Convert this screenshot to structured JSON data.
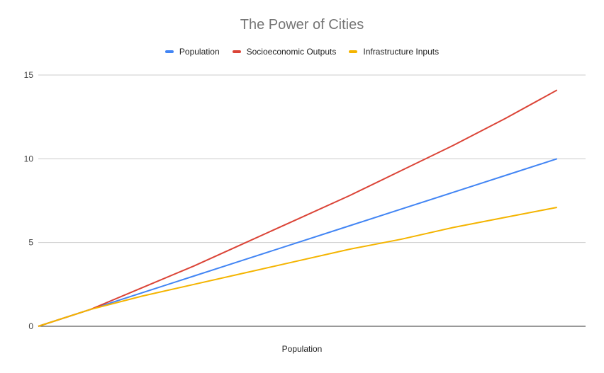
{
  "chart_data": {
    "type": "line",
    "title": "The Power of Cities",
    "xlabel": "Population",
    "ylabel": "",
    "x": [
      0,
      1,
      2,
      3,
      4,
      5,
      6,
      7,
      8,
      9,
      10
    ],
    "xlim": [
      0,
      10.55
    ],
    "ylim": [
      0,
      15
    ],
    "yticks": [
      0,
      5,
      10,
      15
    ],
    "grid": true,
    "legend_position": "top",
    "series": [
      {
        "name": "Population",
        "color": "#4285f4",
        "values": [
          0,
          1,
          2,
          3,
          4,
          5,
          6,
          7,
          8,
          9,
          10
        ]
      },
      {
        "name": "Socioeconomic Outputs",
        "color": "#db4437",
        "values": [
          0,
          1,
          2.3,
          3.6,
          5.0,
          6.4,
          7.8,
          9.3,
          10.8,
          12.4,
          14.1
        ]
      },
      {
        "name": "Infrastructure Inputs",
        "color": "#f4b400",
        "values": [
          0,
          1,
          1.8,
          2.5,
          3.2,
          3.9,
          4.6,
          5.2,
          5.9,
          6.5,
          7.1
        ]
      }
    ]
  }
}
